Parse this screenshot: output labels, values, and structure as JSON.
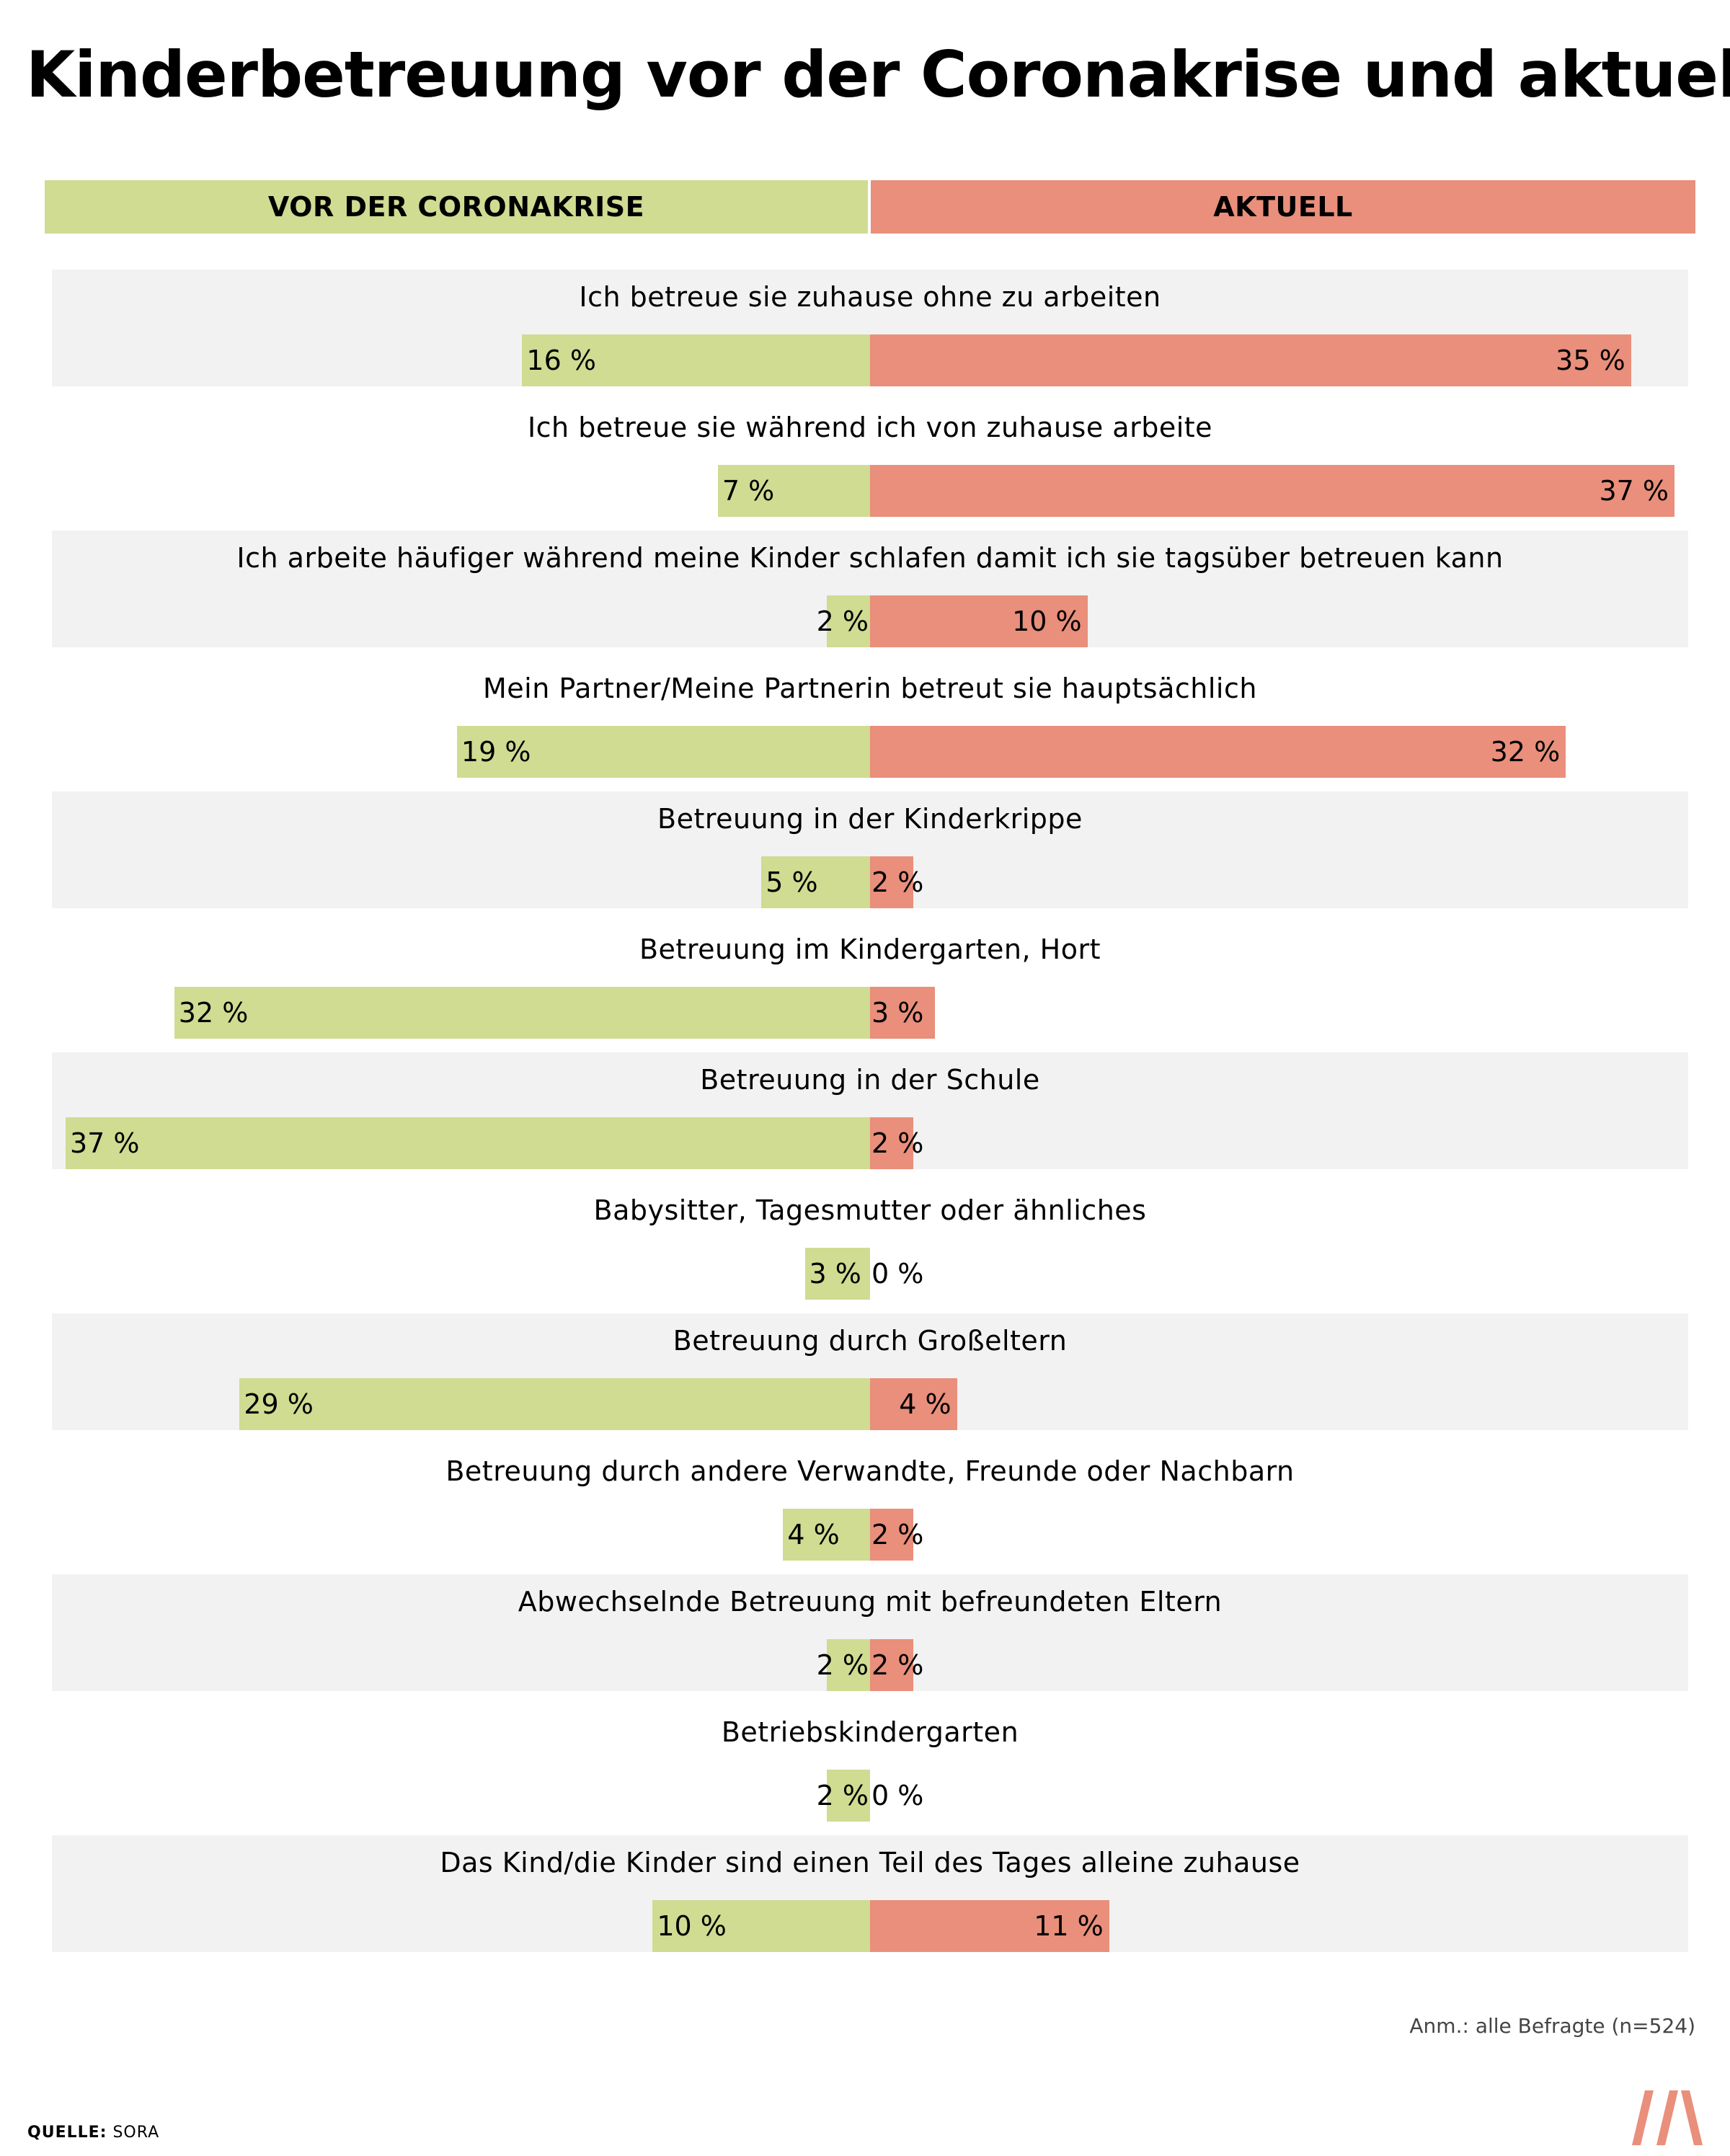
{
  "title": "Kinderbetreuung vor der Coronakrise und aktuell",
  "legend": {
    "left": "VOR DER CORONAKRISE",
    "right": "AKTUELL",
    "left_color": "#cfdc92",
    "right_color": "#e98f7b"
  },
  "chart_data": {
    "type": "bar",
    "orientation": "diverging-horizontal",
    "unit": "%",
    "categories": [
      "Ich betreue sie zuhause ohne zu arbeiten",
      "Ich betreue sie während ich von zuhause arbeite",
      "Ich arbeite häufiger während meine Kinder schlafen damit ich sie tagsüber betreuen kann",
      "Mein Partner/Meine Partnerin betreut sie hauptsächlich",
      "Betreuung in der Kinderkrippe",
      "Betreuung im Kindergarten, Hort",
      "Betreuung in der Schule",
      "Babysitter, Tagesmutter oder ähnliches",
      "Betreuung durch Großeltern",
      "Betreuung durch andere Verwandte, Freunde oder Nachbarn",
      "Abwechselnde Betreuung mit befreundeten Eltern",
      "Betriebskindergarten",
      "Das Kind/die Kinder sind einen Teil des Tages alleine zuhause"
    ],
    "series": [
      {
        "name": "VOR DER CORONAKRISE",
        "values": [
          16,
          7,
          2,
          19,
          5,
          32,
          37,
          3,
          29,
          4,
          2,
          2,
          10
        ]
      },
      {
        "name": "AKTUELL",
        "values": [
          35,
          37,
          10,
          32,
          2,
          3,
          2,
          0,
          4,
          2,
          2,
          0,
          11
        ]
      }
    ]
  },
  "note": "Anm.: alle Befragte (n=524)",
  "source": {
    "label": "QUELLE:",
    "value": "SORA"
  },
  "logo_text": "M"
}
